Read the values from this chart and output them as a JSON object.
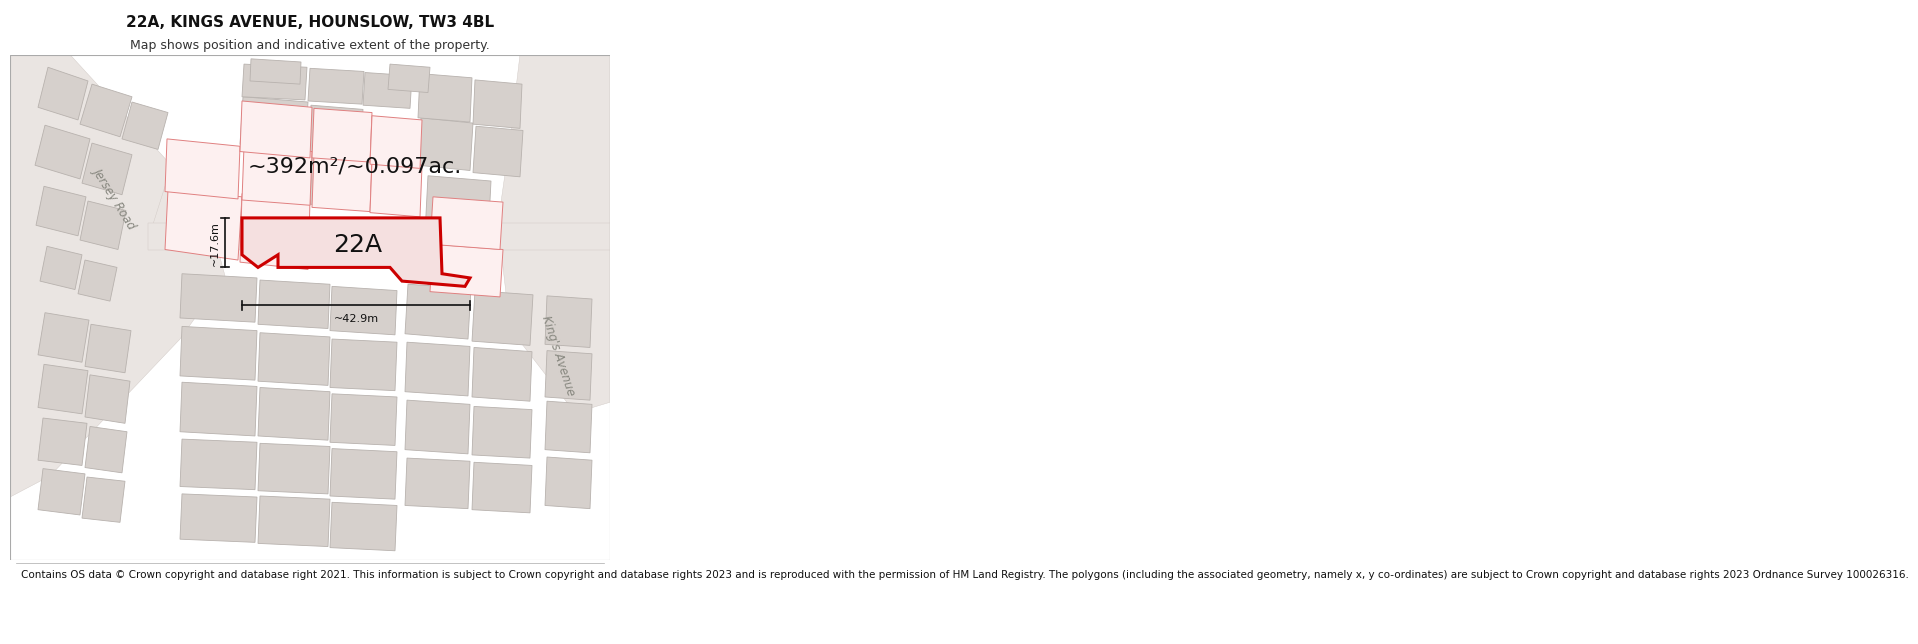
{
  "title_line1": "22A, KINGS AVENUE, HOUNSLOW, TW3 4BL",
  "title_line2": "Map shows position and indicative extent of the property.",
  "area_label": "~392m²/~0.097ac.",
  "property_label": "22A",
  "dim_vertical": "~17.6m",
  "dim_horizontal": "~42.9m",
  "road_label_left": "Jersey Road",
  "road_label_right": "King's Avenue",
  "footer_text": "Contains OS data © Crown copyright and database right 2021. This information is subject to Crown copyright and database rights 2023 and is reproduced with the permission of HM Land Registry. The polygons (including the associated geometry, namely x, y co-ordinates) are subject to Crown copyright and database rights 2023 Ordnance Survey 100026316.",
  "bg_color": "#ffffff",
  "map_bg": "#f7f4f2",
  "building_fill": "#d6d0cc",
  "building_edge": "#b8b2ae",
  "road_fill": "#eae5e2",
  "highlight_color": "#cc0000",
  "prop_edge": "#e08080",
  "prop_fill": "#fdf0f0",
  "dim_color": "#111111",
  "road_text_color": "#888880",
  "title_fontsize": 11,
  "subtitle_fontsize": 9,
  "footer_fontsize": 7.5,
  "area_fontsize": 16,
  "label_fontsize": 18,
  "dim_fontsize": 8,
  "road_fontsize": 8.5
}
